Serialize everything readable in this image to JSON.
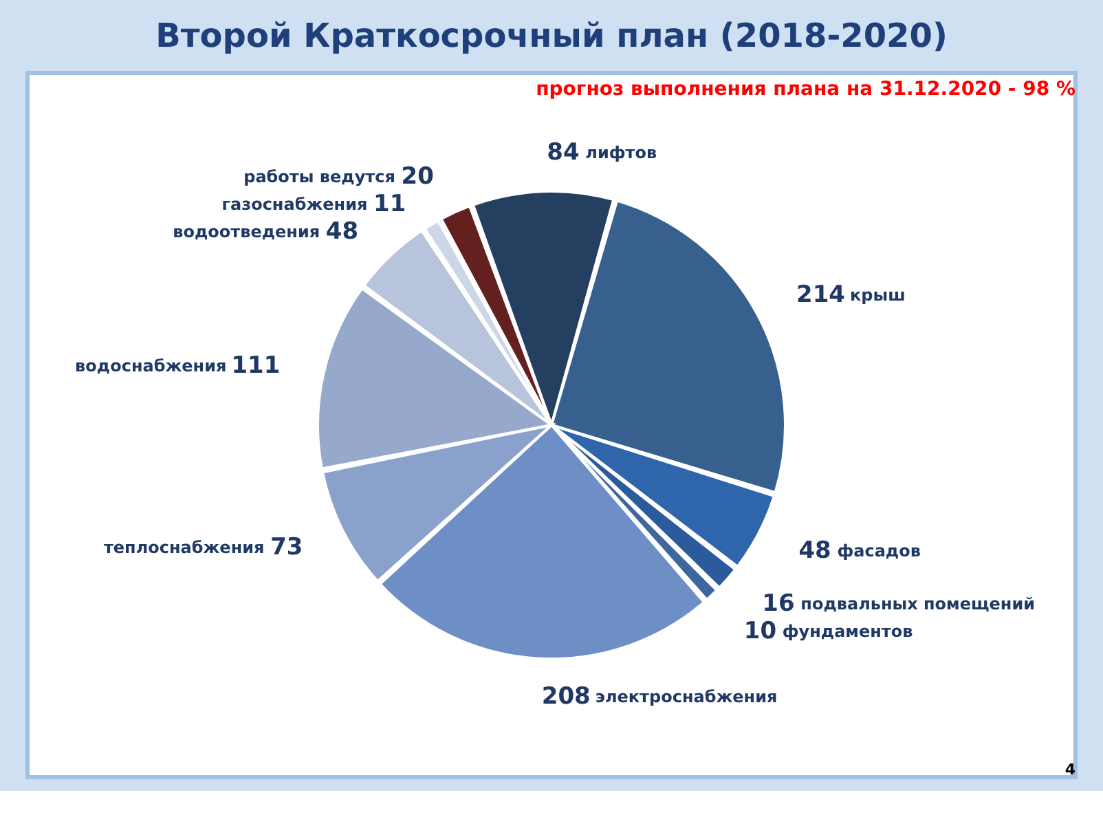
{
  "chart_data": {
    "type": "pie",
    "title": "Второй Краткосрочный  план  (2018-2020)",
    "categories": [
      "лифтов",
      "крыш",
      "фасадов",
      "подвальных помещений",
      "фундаментов",
      "электроснабжения",
      "теплоснабжения",
      "водоснабжения",
      "водоотведения",
      "газоснабжения",
      "работы ведутся"
    ],
    "values": [
      84,
      214,
      48,
      16,
      10,
      208,
      73,
      111,
      48,
      11,
      20
    ],
    "colors": [
      "#253f60",
      "#37608f",
      "#2f66ab",
      "#2c5b9b",
      "#3e659c",
      "#6e8fc6",
      "#8aa1cc",
      "#96a9cc",
      "#b7c4dc",
      "#cdd6e6",
      "#63201f"
    ],
    "data_labels": true,
    "annotations": [
      "прогноз выполнения плана на 31.12.2020 - 98 %",
      "4"
    ]
  }
}
